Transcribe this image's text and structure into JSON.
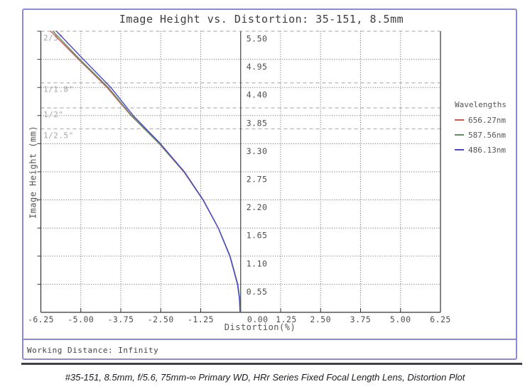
{
  "title": "Image Height vs. Distortion: 35-151, 8.5mm",
  "caption": "#35-151, 8.5mm, f/5.6, 75mm-∞ Primary WD, HRr Series Fixed Focal Length Lens, Distortion Plot",
  "footer": {
    "working_distance": "Working Distance: Infinity"
  },
  "legend": {
    "title": "Wavelengths",
    "items": [
      {
        "label": "656.27nm",
        "color": "#cd564e"
      },
      {
        "label": "587.56nm",
        "color": "#619161"
      },
      {
        "label": "486.13nm",
        "color": "#4848c8"
      }
    ]
  },
  "colors": {
    "frame_blue": "#8a8ad8",
    "grid": "#666666",
    "axis": "#333333",
    "sensor_line": "#b5b5b5",
    "sensor_label": "#a6a6a6",
    "tick_label": "#4d4d4d"
  },
  "chart_data": {
    "type": "line",
    "title": "Image Height vs. Distortion: 35-151, 8.5mm",
    "xlabel": "Distortion(%)",
    "ylabel": "Image Height (mm)",
    "xlim": [
      -6.25,
      6.25
    ],
    "ylim": [
      0,
      5.5
    ],
    "grid": true,
    "legend_position": "right",
    "x_ticks": [
      -6.25,
      -5.0,
      -3.75,
      -2.5,
      -1.25,
      0.0,
      1.25,
      2.5,
      3.75,
      5.0,
      6.25
    ],
    "x_tick_labels": [
      "-6.25",
      "-5.00",
      "-3.75",
      "-2.50",
      "-1.25",
      "0.00",
      "1.25",
      "2.50",
      "3.75",
      "5.00",
      "6.25"
    ],
    "y_ticks": [
      5.5,
      4.95,
      4.4,
      3.85,
      3.3,
      2.75,
      2.2,
      1.65,
      1.1,
      0.55
    ],
    "y_tick_labels": [
      "5.50",
      "4.95",
      "4.40",
      "3.85",
      "3.30",
      "2.75",
      "2.20",
      "1.65",
      "1.10",
      "0.55"
    ],
    "sensor_format_lines": [
      {
        "label": "2/3\"",
        "image_height_mm": 5.5
      },
      {
        "label": "1/1.8\"",
        "image_height_mm": 4.49
      },
      {
        "label": "1/2\"",
        "image_height_mm": 4.0
      },
      {
        "label": "1/2.5\"",
        "image_height_mm": 3.59
      }
    ],
    "series": [
      {
        "name": "656.27nm",
        "color": "#cd564e",
        "points": [
          [
            -5.94,
            5.5
          ],
          [
            -5.07,
            4.95
          ],
          [
            -4.18,
            4.4
          ],
          [
            -3.43,
            3.85
          ],
          [
            -2.55,
            3.3
          ],
          [
            -1.78,
            2.75
          ],
          [
            -1.18,
            2.2
          ],
          [
            -0.7,
            1.65
          ],
          [
            -0.33,
            1.1
          ],
          [
            -0.09,
            0.55
          ],
          [
            -0.03,
            0.27
          ],
          [
            -0.01,
            0.0
          ]
        ]
      },
      {
        "name": "587.56nm",
        "color": "#619161",
        "points": [
          [
            -5.87,
            5.5
          ],
          [
            -5.03,
            4.95
          ],
          [
            -4.14,
            4.4
          ],
          [
            -3.41,
            3.85
          ],
          [
            -2.54,
            3.3
          ],
          [
            -1.77,
            2.75
          ],
          [
            -1.18,
            2.2
          ],
          [
            -0.7,
            1.65
          ],
          [
            -0.33,
            1.1
          ],
          [
            -0.09,
            0.55
          ],
          [
            -0.03,
            0.27
          ],
          [
            -0.01,
            0.0
          ]
        ]
      },
      {
        "name": "486.13nm",
        "color": "#4848c8",
        "points": [
          [
            -5.76,
            5.5
          ],
          [
            -4.92,
            4.95
          ],
          [
            -4.06,
            4.4
          ],
          [
            -3.36,
            3.85
          ],
          [
            -2.51,
            3.3
          ],
          [
            -1.76,
            2.75
          ],
          [
            -1.17,
            2.2
          ],
          [
            -0.7,
            1.65
          ],
          [
            -0.34,
            1.1
          ],
          [
            -0.1,
            0.55
          ],
          [
            -0.04,
            0.27
          ],
          [
            -0.02,
            0.0
          ]
        ]
      }
    ]
  }
}
